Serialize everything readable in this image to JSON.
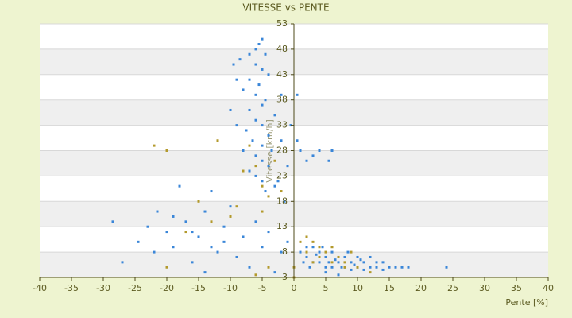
{
  "chart_data": {
    "type": "scatter",
    "title": "VITESSE vs PENTE",
    "x_label": "Pente [%]",
    "y_label": "Vitesse [km/h]",
    "xlim": [
      -40,
      40
    ],
    "xticks": [
      -40,
      -35,
      -30,
      -25,
      -20,
      -15,
      -10,
      -5,
      0,
      5,
      10,
      15,
      20,
      25,
      30,
      35,
      40
    ],
    "ylim": [
      3,
      53
    ],
    "yticks": [
      3,
      8,
      13,
      18,
      23,
      28,
      33,
      38,
      43,
      48,
      53
    ],
    "grid": true,
    "series": [
      {
        "color": "#3a86d8",
        "x": [
          -5,
          -5.5,
          -6,
          -4.5,
          -7,
          -8.5,
          -6,
          -5,
          -4,
          -7,
          -5.5,
          -8,
          -6,
          -4.5,
          -5,
          -7,
          -3,
          -6,
          -5,
          -7.5,
          -4,
          -6.5,
          -5,
          -3.5,
          -8,
          -6,
          -5,
          -4,
          -7,
          -6,
          -5,
          -3,
          -4.5,
          -9.5,
          -9,
          -10,
          -9,
          -2,
          -2,
          -1,
          -2.5,
          -1.5,
          -0.5,
          0.5,
          0.5,
          -28.5,
          -27,
          -24.5,
          -23,
          -21.5,
          -20,
          -19,
          -18,
          -17,
          -16,
          -15,
          -14,
          -13,
          -12,
          -11,
          -10,
          -9,
          -8,
          -7,
          -6,
          -5,
          -4,
          -3,
          -2,
          -1,
          -22,
          -14,
          -16,
          -11,
          -19,
          -13,
          1,
          2,
          3,
          4,
          5,
          6,
          7,
          8,
          9,
          10,
          11,
          12,
          13,
          14,
          15,
          16,
          17,
          18,
          24,
          2,
          3,
          4,
          5,
          6,
          7,
          8,
          9,
          10,
          11,
          12,
          13,
          14,
          1.5,
          2.5,
          3.5,
          4.5,
          5.5,
          6.5,
          7.5,
          8.5,
          9.5,
          10.5,
          1,
          3,
          4,
          6,
          5.5,
          2,
          5,
          7
        ],
        "values": [
          50,
          49,
          48,
          47,
          47,
          46,
          45,
          44,
          43,
          42,
          41,
          40,
          39,
          38,
          37,
          36,
          35,
          34,
          33,
          32,
          31,
          30,
          29,
          28,
          28,
          27,
          26,
          25,
          24,
          23,
          22,
          21,
          20,
          45,
          42,
          36,
          33,
          39,
          30,
          25,
          22,
          18,
          33,
          39,
          30,
          14,
          6,
          10,
          13,
          16,
          12,
          9,
          21,
          14,
          6,
          11,
          16,
          20,
          8,
          13,
          17,
          7,
          11,
          5,
          14,
          9,
          12,
          4,
          8,
          10,
          8,
          4,
          12,
          10,
          15,
          9,
          8,
          7,
          9,
          6,
          7,
          5,
          6,
          5,
          6,
          5,
          6,
          5,
          5,
          4.5,
          5,
          5,
          5,
          5,
          5,
          9,
          6,
          8,
          5,
          8,
          7,
          7,
          4.5,
          7,
          4.5,
          7,
          6,
          6,
          6,
          5,
          7.5,
          9,
          6,
          6.5,
          5,
          8,
          5.5,
          6.5,
          28,
          27,
          28,
          28,
          26,
          26,
          4,
          3.5
        ]
      },
      {
        "color": "#b39a2c",
        "x": [
          -22,
          -20,
          -12,
          -7,
          -6,
          -5,
          -4,
          -9,
          -10,
          -13,
          -15,
          -17,
          -20,
          -6,
          -4,
          -2,
          0,
          0,
          1,
          2,
          3,
          4,
          5,
          6,
          7,
          8,
          9,
          2,
          3,
          4,
          6,
          8,
          10,
          12,
          -3,
          -8,
          -5
        ],
        "values": [
          29,
          28,
          30,
          29,
          25,
          21,
          19,
          17,
          15,
          14,
          18,
          12,
          5,
          3.5,
          5,
          20,
          3,
          5,
          10,
          11,
          10,
          9,
          8,
          9,
          7,
          6,
          8,
          8,
          6,
          7,
          6,
          5,
          5,
          4,
          26,
          24,
          16
        ]
      }
    ]
  }
}
